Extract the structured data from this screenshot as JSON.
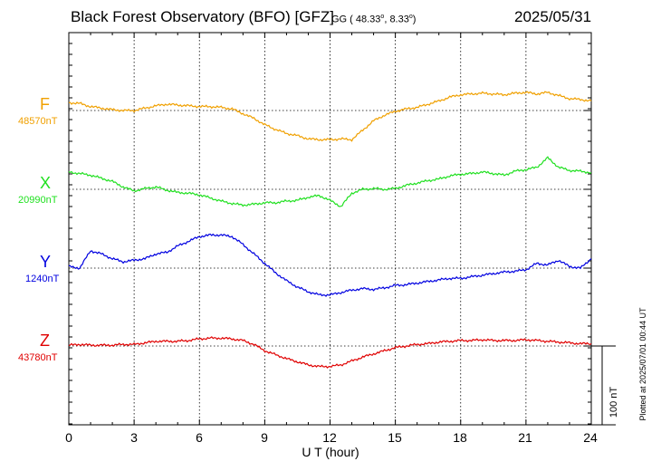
{
  "header": {
    "title": "Black Forest Observatory (BFO)  [GFZ]",
    "coords_prefix": "GG ( 48.33",
    "deg": "o",
    "coords_mid": ",   8.33",
    "coords_suffix": ")",
    "date": "2025/05/31"
  },
  "footer": {
    "xlabel": "U T (hour)",
    "plotted": "Plotted at 2025/07/01 00:44 UT",
    "scale": "100 nT"
  },
  "chart_data": {
    "type": "line",
    "title": "Black Forest Observatory (BFO)  [GFZ]",
    "xlabel": "U T (hour)",
    "xlim": [
      0,
      24
    ],
    "xticks": [
      "0",
      "3",
      "6",
      "9",
      "12",
      "15",
      "18",
      "21",
      "24"
    ],
    "scale_bar_nT": 100,
    "series": [
      {
        "key": "F",
        "name": "F",
        "baseline_label": "48570nT",
        "color": "#f0a000",
        "baseline_nT": 48570,
        "x": [
          0,
          0.5,
          1,
          1.5,
          2,
          2.5,
          3,
          3.5,
          4,
          4.5,
          5,
          5.5,
          6,
          6.5,
          7,
          7.5,
          8,
          8.5,
          9,
          9.5,
          10,
          10.5,
          11,
          11.5,
          12,
          12.5,
          13,
          13.5,
          14,
          14.5,
          15,
          15.5,
          16,
          16.5,
          17,
          17.5,
          18,
          18.5,
          19,
          19.5,
          20,
          20.5,
          21,
          21.5,
          22,
          22.5,
          23,
          23.5,
          24
        ],
        "values": [
          48580,
          48579,
          48575,
          48573,
          48571,
          48570,
          48570,
          48573,
          48576,
          48578,
          48577,
          48576,
          48575,
          48575,
          48574,
          48572,
          48566,
          48560,
          48552,
          48546,
          48541,
          48538,
          48534,
          48533,
          48533,
          48534,
          48533,
          48545,
          48557,
          48564,
          48569,
          48572,
          48574,
          48578,
          48582,
          48587,
          48590,
          48591,
          48592,
          48591,
          48590,
          48592,
          48593,
          48591,
          48593,
          48589,
          48585,
          48584,
          48582
        ]
      },
      {
        "key": "X",
        "name": "X",
        "baseline_label": "20990nT",
        "color": "#20e020",
        "baseline_nT": 20990,
        "x": [
          0,
          0.5,
          1,
          1.5,
          2,
          2.5,
          3,
          3.5,
          4,
          4.5,
          5,
          5.5,
          6,
          6.5,
          7,
          7.5,
          8,
          8.5,
          9,
          9.5,
          10,
          10.5,
          11,
          11.5,
          12,
          12.5,
          13,
          13.5,
          14,
          14.5,
          15,
          15.5,
          16,
          16.5,
          17,
          17.5,
          18,
          18.5,
          19,
          19.5,
          20,
          20.5,
          21,
          21.5,
          22,
          22.5,
          23,
          23.5,
          24
        ],
        "values": [
          21012,
          21010,
          21008,
          21004,
          21000,
          20993,
          20988,
          20991,
          20993,
          20989,
          20986,
          20985,
          20983,
          20979,
          20975,
          20972,
          20970,
          20971,
          20973,
          20973,
          20975,
          20976,
          20980,
          20982,
          20976,
          20968,
          20985,
          20990,
          20991,
          20990,
          20991,
          20995,
          20998,
          21001,
          21003,
          21007,
          21009,
          21010,
          21012,
          21010,
          21008,
          21013,
          21015,
          21018,
          21030,
          21018,
          21014,
          21013,
          21011
        ]
      },
      {
        "key": "Y",
        "name": "Y",
        "baseline_label": "1240nT",
        "color": "#0000e0",
        "baseline_nT": 1240,
        "x": [
          0,
          0.5,
          1,
          1.5,
          2,
          2.5,
          3,
          3.5,
          4,
          4.5,
          5,
          5.5,
          6,
          6.5,
          7,
          7.5,
          8,
          8.5,
          9,
          9.5,
          10,
          10.5,
          11,
          11.5,
          12,
          12.5,
          13,
          13.5,
          14,
          14.5,
          15,
          15.5,
          16,
          16.5,
          17,
          17.5,
          18,
          18.5,
          19,
          19.5,
          20,
          20.5,
          21,
          21.5,
          22,
          22.5,
          23,
          23.5,
          24
        ],
        "values": [
          1242,
          1240,
          1262,
          1258,
          1252,
          1248,
          1250,
          1252,
          1258,
          1260,
          1268,
          1274,
          1280,
          1282,
          1282,
          1280,
          1270,
          1258,
          1246,
          1234,
          1224,
          1216,
          1210,
          1206,
          1206,
          1209,
          1212,
          1214,
          1213,
          1215,
          1218,
          1219,
          1221,
          1223,
          1225,
          1227,
          1227,
          1229,
          1231,
          1233,
          1235,
          1236,
          1238,
          1246,
          1244,
          1250,
          1242,
          1240,
          1252
        ]
      },
      {
        "key": "Z",
        "name": "Z",
        "baseline_label": "43780nT",
        "color": "#e00000",
        "baseline_nT": 43780,
        "x": [
          0,
          0.5,
          1,
          1.5,
          2,
          2.5,
          3,
          3.5,
          4,
          4.5,
          5,
          5.5,
          6,
          6.5,
          7,
          7.5,
          8,
          8.5,
          9,
          9.5,
          10,
          10.5,
          11,
          11.5,
          12,
          12.5,
          13,
          13.5,
          14,
          14.5,
          15,
          15.5,
          16,
          16.5,
          17,
          17.5,
          18,
          18.5,
          19,
          19.5,
          20,
          20.5,
          21,
          21.5,
          22,
          22.5,
          23,
          23.5,
          24
        ],
        "values": [
          43781,
          43782,
          43781,
          43781,
          43781,
          43782,
          43782,
          43784,
          43786,
          43786,
          43786,
          43787,
          43789,
          43790,
          43790,
          43789,
          43787,
          43782,
          43774,
          43769,
          43764,
          43760,
          43756,
          43754,
          43754,
          43756,
          43761,
          43766,
          43770,
          43774,
          43778,
          43780,
          43782,
          43783,
          43785,
          43786,
          43787,
          43787,
          43788,
          43787,
          43787,
          43787,
          43788,
          43787,
          43786,
          43785,
          43784,
          43783,
          43783
        ]
      }
    ]
  }
}
